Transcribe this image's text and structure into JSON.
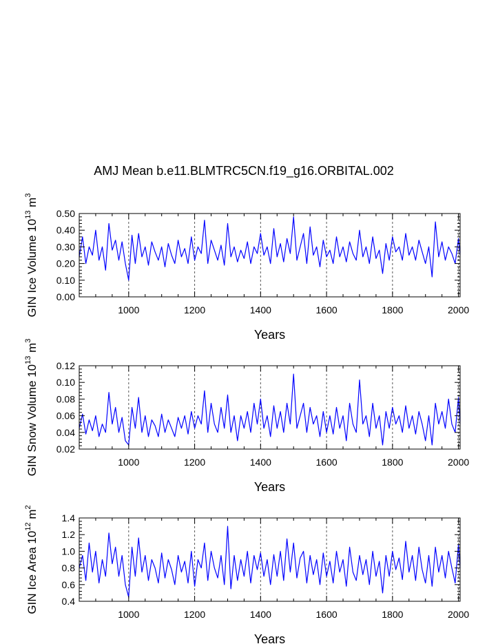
{
  "title": "AMJ Mean b.e11.BLMTRC5CN.f19_g16.ORBITAL.002",
  "colors": {
    "series": "#0000ff",
    "axes": "#000000",
    "grid": "#555555"
  },
  "chart_data": [
    {
      "type": "line",
      "panel": "ice-volume",
      "ylabel_main": "GIN Ice Volume 10",
      "ylabel_exp": "13",
      "ylabel_unit": " m",
      "ylabel_unit_exp": "3",
      "xlabel": "Years",
      "xlim": [
        850,
        2005
      ],
      "ylim": [
        0.0,
        0.5
      ],
      "xticks": [
        1000,
        1200,
        1400,
        1600,
        1800,
        2000
      ],
      "xtick_labels": [
        "1000",
        "1200",
        "1400",
        "1600",
        "1800",
        "2000"
      ],
      "yticks": [
        0.0,
        0.1,
        0.2,
        0.3,
        0.4,
        0.5
      ],
      "ytick_labels": [
        "0.00",
        "0.10",
        "0.20",
        "0.30",
        "0.40",
        "0.50"
      ],
      "grid_x": [
        1000,
        1200,
        1400,
        1600,
        1800,
        2000
      ],
      "series": {
        "name": "GIN Ice Volume",
        "x": [
          850,
          860,
          870,
          880,
          890,
          900,
          910,
          920,
          930,
          940,
          950,
          960,
          970,
          980,
          990,
          1000,
          1010,
          1020,
          1030,
          1040,
          1050,
          1060,
          1070,
          1080,
          1090,
          1100,
          1110,
          1120,
          1130,
          1140,
          1150,
          1160,
          1170,
          1180,
          1190,
          1200,
          1210,
          1220,
          1230,
          1240,
          1250,
          1260,
          1270,
          1280,
          1290,
          1300,
          1310,
          1320,
          1330,
          1340,
          1350,
          1360,
          1370,
          1380,
          1390,
          1400,
          1410,
          1420,
          1430,
          1440,
          1450,
          1460,
          1470,
          1480,
          1490,
          1500,
          1510,
          1520,
          1530,
          1540,
          1550,
          1560,
          1570,
          1580,
          1590,
          1600,
          1610,
          1620,
          1630,
          1640,
          1650,
          1660,
          1670,
          1680,
          1690,
          1700,
          1710,
          1720,
          1730,
          1740,
          1750,
          1760,
          1770,
          1780,
          1790,
          1800,
          1810,
          1820,
          1830,
          1840,
          1850,
          1860,
          1870,
          1880,
          1890,
          1900,
          1910,
          1920,
          1930,
          1940,
          1950,
          1960,
          1970,
          1980,
          1990,
          2000,
          2005
        ],
        "values": [
          0.24,
          0.36,
          0.2,
          0.3,
          0.25,
          0.4,
          0.22,
          0.3,
          0.16,
          0.44,
          0.28,
          0.34,
          0.22,
          0.33,
          0.2,
          0.1,
          0.37,
          0.2,
          0.38,
          0.24,
          0.3,
          0.19,
          0.33,
          0.27,
          0.22,
          0.3,
          0.18,
          0.32,
          0.25,
          0.2,
          0.34,
          0.24,
          0.29,
          0.2,
          0.36,
          0.22,
          0.3,
          0.26,
          0.46,
          0.2,
          0.34,
          0.28,
          0.22,
          0.31,
          0.19,
          0.44,
          0.24,
          0.3,
          0.21,
          0.28,
          0.23,
          0.33,
          0.2,
          0.3,
          0.26,
          0.38,
          0.25,
          0.3,
          0.2,
          0.41,
          0.24,
          0.32,
          0.21,
          0.35,
          0.26,
          0.48,
          0.22,
          0.3,
          0.38,
          0.2,
          0.42,
          0.25,
          0.3,
          0.18,
          0.34,
          0.24,
          0.28,
          0.2,
          0.36,
          0.24,
          0.3,
          0.21,
          0.33,
          0.26,
          0.22,
          0.4,
          0.24,
          0.3,
          0.2,
          0.36,
          0.23,
          0.28,
          0.14,
          0.32,
          0.22,
          0.36,
          0.27,
          0.3,
          0.22,
          0.38,
          0.25,
          0.3,
          0.22,
          0.34,
          0.27,
          0.2,
          0.3,
          0.12,
          0.45,
          0.24,
          0.33,
          0.22,
          0.3,
          0.26,
          0.2,
          0.35,
          0.25
        ]
      }
    },
    {
      "type": "line",
      "panel": "snow-volume",
      "ylabel_main": "GIN Snow Volume 10",
      "ylabel_exp": "13",
      "ylabel_unit": " m",
      "ylabel_unit_exp": "3",
      "xlabel": "Years",
      "xlim": [
        850,
        2005
      ],
      "ylim": [
        0.02,
        0.12
      ],
      "xticks": [
        1000,
        1200,
        1400,
        1600,
        1800,
        2000
      ],
      "xtick_labels": [
        "1000",
        "1200",
        "1400",
        "1600",
        "1800",
        "2000"
      ],
      "yticks": [
        0.02,
        0.04,
        0.06,
        0.08,
        0.1,
        0.12
      ],
      "ytick_labels": [
        "0.02",
        "0.04",
        "0.06",
        "0.08",
        "0.10",
        "0.12"
      ],
      "grid_x": [
        1000,
        1200,
        1400,
        1600,
        1800,
        2000
      ],
      "series": {
        "name": "GIN Snow Volume",
        "x": [
          850,
          860,
          870,
          880,
          890,
          900,
          910,
          920,
          930,
          940,
          950,
          960,
          970,
          980,
          990,
          1000,
          1010,
          1020,
          1030,
          1040,
          1050,
          1060,
          1070,
          1080,
          1090,
          1100,
          1110,
          1120,
          1130,
          1140,
          1150,
          1160,
          1170,
          1180,
          1190,
          1200,
          1210,
          1220,
          1230,
          1240,
          1250,
          1260,
          1270,
          1280,
          1290,
          1300,
          1310,
          1320,
          1330,
          1340,
          1350,
          1360,
          1370,
          1380,
          1390,
          1400,
          1410,
          1420,
          1430,
          1440,
          1450,
          1460,
          1470,
          1480,
          1490,
          1500,
          1510,
          1520,
          1530,
          1540,
          1550,
          1560,
          1570,
          1580,
          1590,
          1600,
          1610,
          1620,
          1630,
          1640,
          1650,
          1660,
          1670,
          1680,
          1690,
          1700,
          1710,
          1720,
          1730,
          1740,
          1750,
          1760,
          1770,
          1780,
          1790,
          1800,
          1810,
          1820,
          1830,
          1840,
          1850,
          1860,
          1870,
          1880,
          1890,
          1900,
          1910,
          1920,
          1930,
          1940,
          1950,
          1960,
          1970,
          1980,
          1990,
          2000,
          2005
        ],
        "values": [
          0.045,
          0.062,
          0.038,
          0.055,
          0.042,
          0.06,
          0.035,
          0.05,
          0.04,
          0.088,
          0.05,
          0.07,
          0.04,
          0.058,
          0.03,
          0.025,
          0.07,
          0.045,
          0.082,
          0.04,
          0.06,
          0.035,
          0.055,
          0.048,
          0.035,
          0.062,
          0.04,
          0.055,
          0.045,
          0.035,
          0.058,
          0.045,
          0.06,
          0.038,
          0.065,
          0.045,
          0.06,
          0.05,
          0.09,
          0.04,
          0.075,
          0.05,
          0.04,
          0.07,
          0.045,
          0.085,
          0.04,
          0.06,
          0.03,
          0.06,
          0.045,
          0.065,
          0.04,
          0.075,
          0.05,
          0.08,
          0.045,
          0.06,
          0.035,
          0.072,
          0.045,
          0.065,
          0.04,
          0.075,
          0.05,
          0.11,
          0.045,
          0.06,
          0.075,
          0.04,
          0.07,
          0.05,
          0.06,
          0.035,
          0.065,
          0.04,
          0.06,
          0.038,
          0.07,
          0.045,
          0.06,
          0.03,
          0.075,
          0.05,
          0.04,
          0.103,
          0.05,
          0.06,
          0.035,
          0.075,
          0.045,
          0.06,
          0.025,
          0.065,
          0.045,
          0.07,
          0.05,
          0.06,
          0.04,
          0.072,
          0.045,
          0.06,
          0.038,
          0.065,
          0.05,
          0.03,
          0.06,
          0.025,
          0.075,
          0.05,
          0.065,
          0.045,
          0.08,
          0.05,
          0.04,
          0.082,
          0.05
        ]
      }
    },
    {
      "type": "line",
      "panel": "ice-area",
      "ylabel_main": "GIN Ice Area 10",
      "ylabel_exp": "12",
      "ylabel_unit": " m",
      "ylabel_unit_exp": "2",
      "xlabel": "Years",
      "xlim": [
        850,
        2005
      ],
      "ylim": [
        0.4,
        1.4
      ],
      "xticks": [
        1000,
        1200,
        1400,
        1600,
        1800,
        2000
      ],
      "xtick_labels": [
        "1000",
        "1200",
        "1400",
        "1600",
        "1800",
        "2000"
      ],
      "yticks": [
        0.4,
        0.6,
        0.8,
        1.0,
        1.2,
        1.4
      ],
      "ytick_labels": [
        "0.4",
        "0.6",
        "0.8",
        "1.0",
        "1.2",
        "1.4"
      ],
      "grid_x": [
        1000,
        1200,
        1400,
        1600,
        1800,
        2000
      ],
      "series": {
        "name": "GIN Ice Area",
        "x": [
          850,
          860,
          870,
          880,
          890,
          900,
          910,
          920,
          930,
          940,
          950,
          960,
          970,
          980,
          990,
          1000,
          1010,
          1020,
          1030,
          1040,
          1050,
          1060,
          1070,
          1080,
          1090,
          1100,
          1110,
          1120,
          1130,
          1140,
          1150,
          1160,
          1170,
          1180,
          1190,
          1200,
          1210,
          1220,
          1230,
          1240,
          1250,
          1260,
          1270,
          1280,
          1290,
          1300,
          1310,
          1320,
          1330,
          1340,
          1350,
          1360,
          1370,
          1380,
          1390,
          1400,
          1410,
          1420,
          1430,
          1440,
          1450,
          1460,
          1470,
          1480,
          1490,
          1500,
          1510,
          1520,
          1530,
          1540,
          1550,
          1560,
          1570,
          1580,
          1590,
          1600,
          1610,
          1620,
          1630,
          1640,
          1650,
          1660,
          1670,
          1680,
          1690,
          1700,
          1710,
          1720,
          1730,
          1740,
          1750,
          1760,
          1770,
          1780,
          1790,
          1800,
          1810,
          1820,
          1830,
          1840,
          1850,
          1860,
          1870,
          1880,
          1890,
          1900,
          1910,
          1920,
          1930,
          1940,
          1950,
          1960,
          1970,
          1980,
          1990,
          2000,
          2005
        ],
        "values": [
          0.8,
          0.95,
          0.65,
          1.1,
          0.75,
          1.0,
          0.62,
          0.9,
          0.7,
          1.22,
          0.85,
          1.05,
          0.7,
          0.95,
          0.6,
          0.45,
          1.05,
          0.7,
          1.16,
          0.75,
          0.95,
          0.65,
          0.9,
          0.8,
          0.62,
          0.98,
          0.68,
          0.9,
          0.78,
          0.6,
          0.95,
          0.75,
          0.88,
          0.62,
          1.0,
          0.58,
          0.9,
          0.8,
          1.1,
          0.65,
          1.0,
          0.8,
          0.68,
          0.95,
          0.6,
          1.3,
          0.55,
          0.95,
          0.65,
          0.9,
          0.7,
          1.0,
          0.62,
          0.95,
          0.78,
          0.98,
          0.7,
          0.9,
          0.6,
          0.96,
          0.7,
          1.0,
          0.65,
          1.15,
          0.75,
          1.1,
          0.68,
          0.92,
          1.0,
          0.62,
          0.95,
          0.72,
          0.9,
          0.6,
          0.98,
          0.7,
          0.88,
          0.62,
          1.0,
          0.75,
          0.9,
          0.58,
          1.05,
          0.75,
          0.65,
          0.95,
          0.72,
          0.9,
          0.6,
          1.0,
          0.7,
          0.88,
          0.5,
          0.95,
          0.7,
          1.0,
          0.78,
          0.92,
          0.66,
          1.12,
          0.75,
          0.95,
          0.65,
          1.05,
          0.78,
          0.62,
          0.95,
          0.58,
          1.05,
          0.75,
          0.95,
          0.68,
          1.0,
          0.8,
          0.62,
          1.08,
          0.8
        ]
      }
    }
  ]
}
